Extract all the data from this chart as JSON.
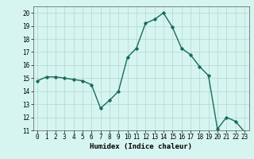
{
  "x": [
    0,
    1,
    2,
    3,
    4,
    5,
    6,
    7,
    8,
    9,
    10,
    11,
    12,
    13,
    14,
    15,
    16,
    17,
    18,
    19,
    20,
    21,
    22,
    23
  ],
  "y": [
    14.8,
    15.1,
    15.1,
    15.0,
    14.9,
    14.8,
    14.5,
    12.7,
    13.3,
    14.0,
    16.6,
    17.3,
    19.2,
    19.5,
    20.0,
    18.9,
    17.3,
    16.8,
    15.9,
    15.2,
    11.1,
    12.0,
    11.7,
    10.9
  ],
  "xlabel": "Humidex (Indice chaleur)",
  "xlim": [
    -0.5,
    23.5
  ],
  "ylim": [
    11,
    20.5
  ],
  "yticks": [
    11,
    12,
    13,
    14,
    15,
    16,
    17,
    18,
    19,
    20
  ],
  "xticks": [
    0,
    1,
    2,
    3,
    4,
    5,
    6,
    7,
    8,
    9,
    10,
    11,
    12,
    13,
    14,
    15,
    16,
    17,
    18,
    19,
    20,
    21,
    22,
    23
  ],
  "line_color": "#1a6b5a",
  "marker": "D",
  "marker_size": 1.8,
  "line_width": 1.0,
  "bg_color": "#d6f5f0",
  "grid_color": "#b0d8d0",
  "tick_fontsize": 5.5,
  "label_fontsize": 6.5
}
